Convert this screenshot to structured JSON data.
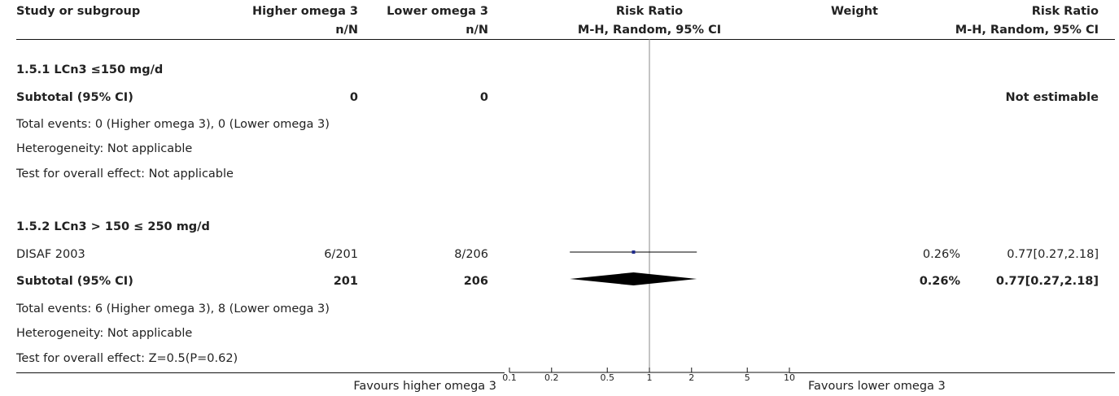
{
  "header": {
    "col_study": "Study or subgroup",
    "col_higher": "Higher omega 3",
    "col_higher_sub": "n/N",
    "col_lower": "Lower omega 3",
    "col_lower_sub": "n/N",
    "col_rr_plot": "Risk Ratio",
    "col_rr_plot_sub": "M-H, Random, 95% CI",
    "col_weight": "Weight",
    "col_rr": "Risk Ratio",
    "col_rr_sub": "M-H, Random, 95% CI"
  },
  "groups": [
    {
      "title": "1.5.1 LCn3 ≤150 mg/d",
      "subtotal_label": "Subtotal (95% CI)",
      "subtotal_higher": "0",
      "subtotal_lower": "0",
      "subtotal_result": "Not estimable",
      "total_events": "Total events: 0 (Higher omega 3), 0 (Lower omega 3)",
      "heterogeneity": "Heterogeneity: Not applicable",
      "overall_effect": "Test for overall effect: Not applicable"
    },
    {
      "title": "1.5.2 LCn3 > 150 ≤ 250 mg/d",
      "study_name": "DISAF 2003",
      "study_higher": "6/201",
      "study_lower": "8/206",
      "study_weight": "0.26%",
      "study_rr": "0.77[0.27,2.18]",
      "subtotal_label": "Subtotal (95% CI)",
      "subtotal_higher": "201",
      "subtotal_lower": "206",
      "subtotal_weight": "0.26%",
      "subtotal_rr": "0.77[0.27,2.18]",
      "total_events": "Total events: 6 (Higher omega 3), 8 (Lower omega 3)",
      "heterogeneity": "Heterogeneity: Not applicable",
      "overall_effect": "Test for overall effect: Z=0.5(P=0.62)"
    }
  ],
  "footer": {
    "favours_left": "Favours higher omega 3",
    "favours_right": "Favours lower omega 3"
  },
  "chart_data": {
    "type": "forest",
    "scale": "log",
    "xlim": [
      0.1,
      10
    ],
    "ticks": [
      0.1,
      0.2,
      0.5,
      1,
      2,
      5,
      10
    ],
    "tick_labels": [
      "0.1",
      "0.2",
      "0.5",
      "1",
      "2",
      "5",
      "10"
    ],
    "null_line": 1,
    "studies": [
      {
        "name": "DISAF 2003",
        "rr": 0.77,
        "ci": [
          0.27,
          2.18
        ],
        "weight": 0.26
      }
    ],
    "subtotals": [
      {
        "group": "1.5.2 LCn3 > 150 ≤ 250 mg/d",
        "rr": 0.77,
        "ci": [
          0.27,
          2.18
        ]
      }
    ],
    "marker_color": "#1f2a8c",
    "diamond_color": "#000000"
  }
}
